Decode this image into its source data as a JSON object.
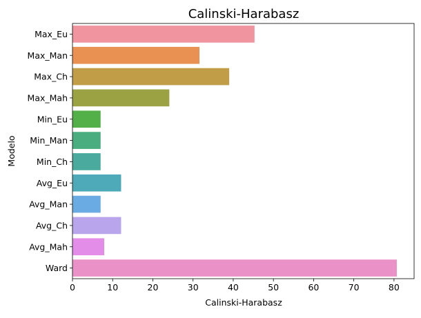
{
  "chart_data": {
    "type": "bar",
    "orientation": "horizontal",
    "title": "Calinski-Harabasz",
    "xlabel": "Calinski-Harabasz",
    "ylabel": "Modelo",
    "xlim": [
      0,
      85
    ],
    "xticks": [
      0,
      10,
      20,
      30,
      40,
      50,
      60,
      70,
      80
    ],
    "grid": false,
    "categories": [
      "Max_Eu",
      "Max_Man",
      "Max_Ch",
      "Max_Mah",
      "Min_Eu",
      "Min_Man",
      "Min_Ch",
      "Avg_Eu",
      "Avg_Man",
      "Avg_Ch",
      "Avg_Mah",
      "Ward"
    ],
    "values": [
      45.3,
      31.6,
      39.0,
      24.1,
      7.0,
      7.0,
      7.0,
      12.1,
      7.0,
      12.1,
      7.9,
      80.7
    ],
    "colors": [
      "#f0949f",
      "#e99152",
      "#c29d47",
      "#9aa244",
      "#53af48",
      "#4aad80",
      "#4aaa9d",
      "#4eaab9",
      "#6babe3",
      "#b8a5ec",
      "#e38de9",
      "#ea92c8"
    ]
  }
}
